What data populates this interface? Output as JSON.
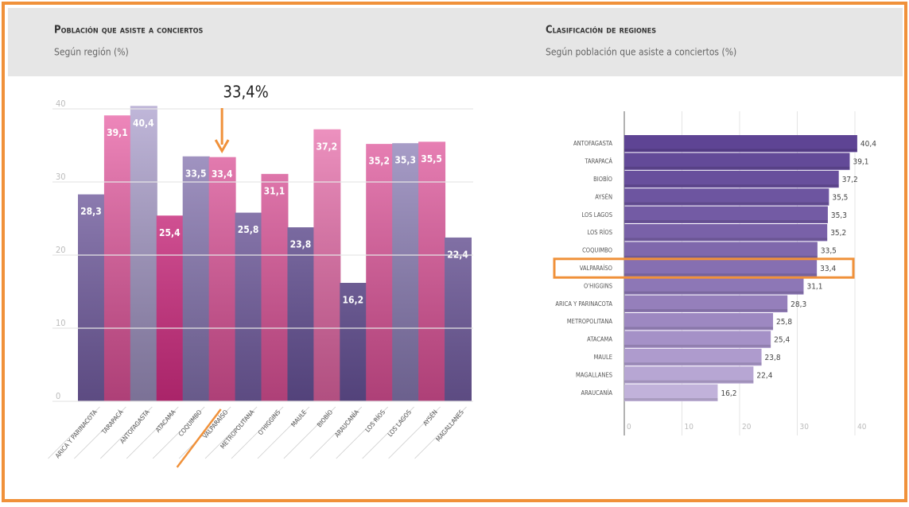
{
  "chart_data": [
    {
      "type": "bar",
      "title": "Población que asiste a conciertos",
      "subtitle": "Según región (%)",
      "annotation": {
        "text": "33,4%",
        "index": 5
      },
      "categories": [
        "ARICA Y PARINACOTA",
        "TARAPACÁ",
        "ANTOFAGASTA",
        "ATACAMA",
        "COQUIMBO",
        "VALPARAÍSO",
        "METROPOLITANA",
        "O'HIGGINS",
        "MAULE",
        "BIOBÍO",
        "ARAUCANÍA",
        "LOS RÍOS",
        "LOS LAGOS",
        "AYSÉN",
        "MAGALLANES"
      ],
      "values": [
        28.3,
        39.1,
        40.4,
        25.4,
        33.5,
        33.4,
        25.8,
        31.1,
        23.8,
        37.2,
        16.2,
        35.2,
        35.3,
        35.5,
        22.4
      ],
      "value_labels": [
        "28,3",
        "39,1",
        "40,4",
        "25,4",
        "33,5",
        "33,4",
        "25,8",
        "31,1",
        "23,8",
        "37,2",
        "16,2",
        "35,2",
        "35,3",
        "35,5",
        "22,4"
      ],
      "colors": [
        "#7b64ad",
        "#e8559f",
        "#a497c8",
        "#e2308c",
        "#8a78b8",
        "#e8559f",
        "#7b64ad",
        "#e8559f",
        "#6e58a3",
        "#ec6aab",
        "#6e58a3",
        "#e8559f",
        "#8f80bc",
        "#e8559f",
        "#7b64ad"
      ],
      "ylim": [
        0,
        40
      ],
      "yticks": [
        0,
        10,
        20,
        30,
        40
      ],
      "grid": true
    },
    {
      "type": "barh",
      "title": "Clasificación de regiones",
      "subtitle": "Según población que asiste a conciertos (%)",
      "highlight": 7,
      "categories": [
        "ANTOFAGASTA",
        "TARAPACÁ",
        "BIOBÍO",
        "AYSÉN",
        "LOS LAGOS",
        "LOS RÍOS",
        "COQUIMBO",
        "VALPARAÍSO",
        "O'HIGGINS",
        "ARICA Y PARINACOTA",
        "METROPOLITANA",
        "ATACAMA",
        "MAULE",
        "MAGALLANES",
        "ARAUCANÍA"
      ],
      "values": [
        40.4,
        39.1,
        37.2,
        35.5,
        35.3,
        35.2,
        33.5,
        33.4,
        31.1,
        28.3,
        25.8,
        25.4,
        23.8,
        22.4,
        16.2
      ],
      "value_labels": [
        "40,4",
        "39,1",
        "37,2",
        "35,5",
        "35,3",
        "35,2",
        "33,5",
        "33,4",
        "31,1",
        "28,3",
        "25,8",
        "25,4",
        "23,8",
        "22,4",
        "16,2"
      ],
      "colors": [
        "#5e4494",
        "#634a98",
        "#684f9c",
        "#6d55a0",
        "#735ba4",
        "#7961a8",
        "#7f68ac",
        "#866fb1",
        "#8d77b6",
        "#957fbb",
        "#9d88c1",
        "#a591c7",
        "#ae9bcd",
        "#b7a6d3",
        "#c1b2da"
      ],
      "xlim": [
        0,
        40
      ],
      "xticks": [
        0,
        10,
        20,
        30,
        40
      ],
      "grid": true
    }
  ]
}
